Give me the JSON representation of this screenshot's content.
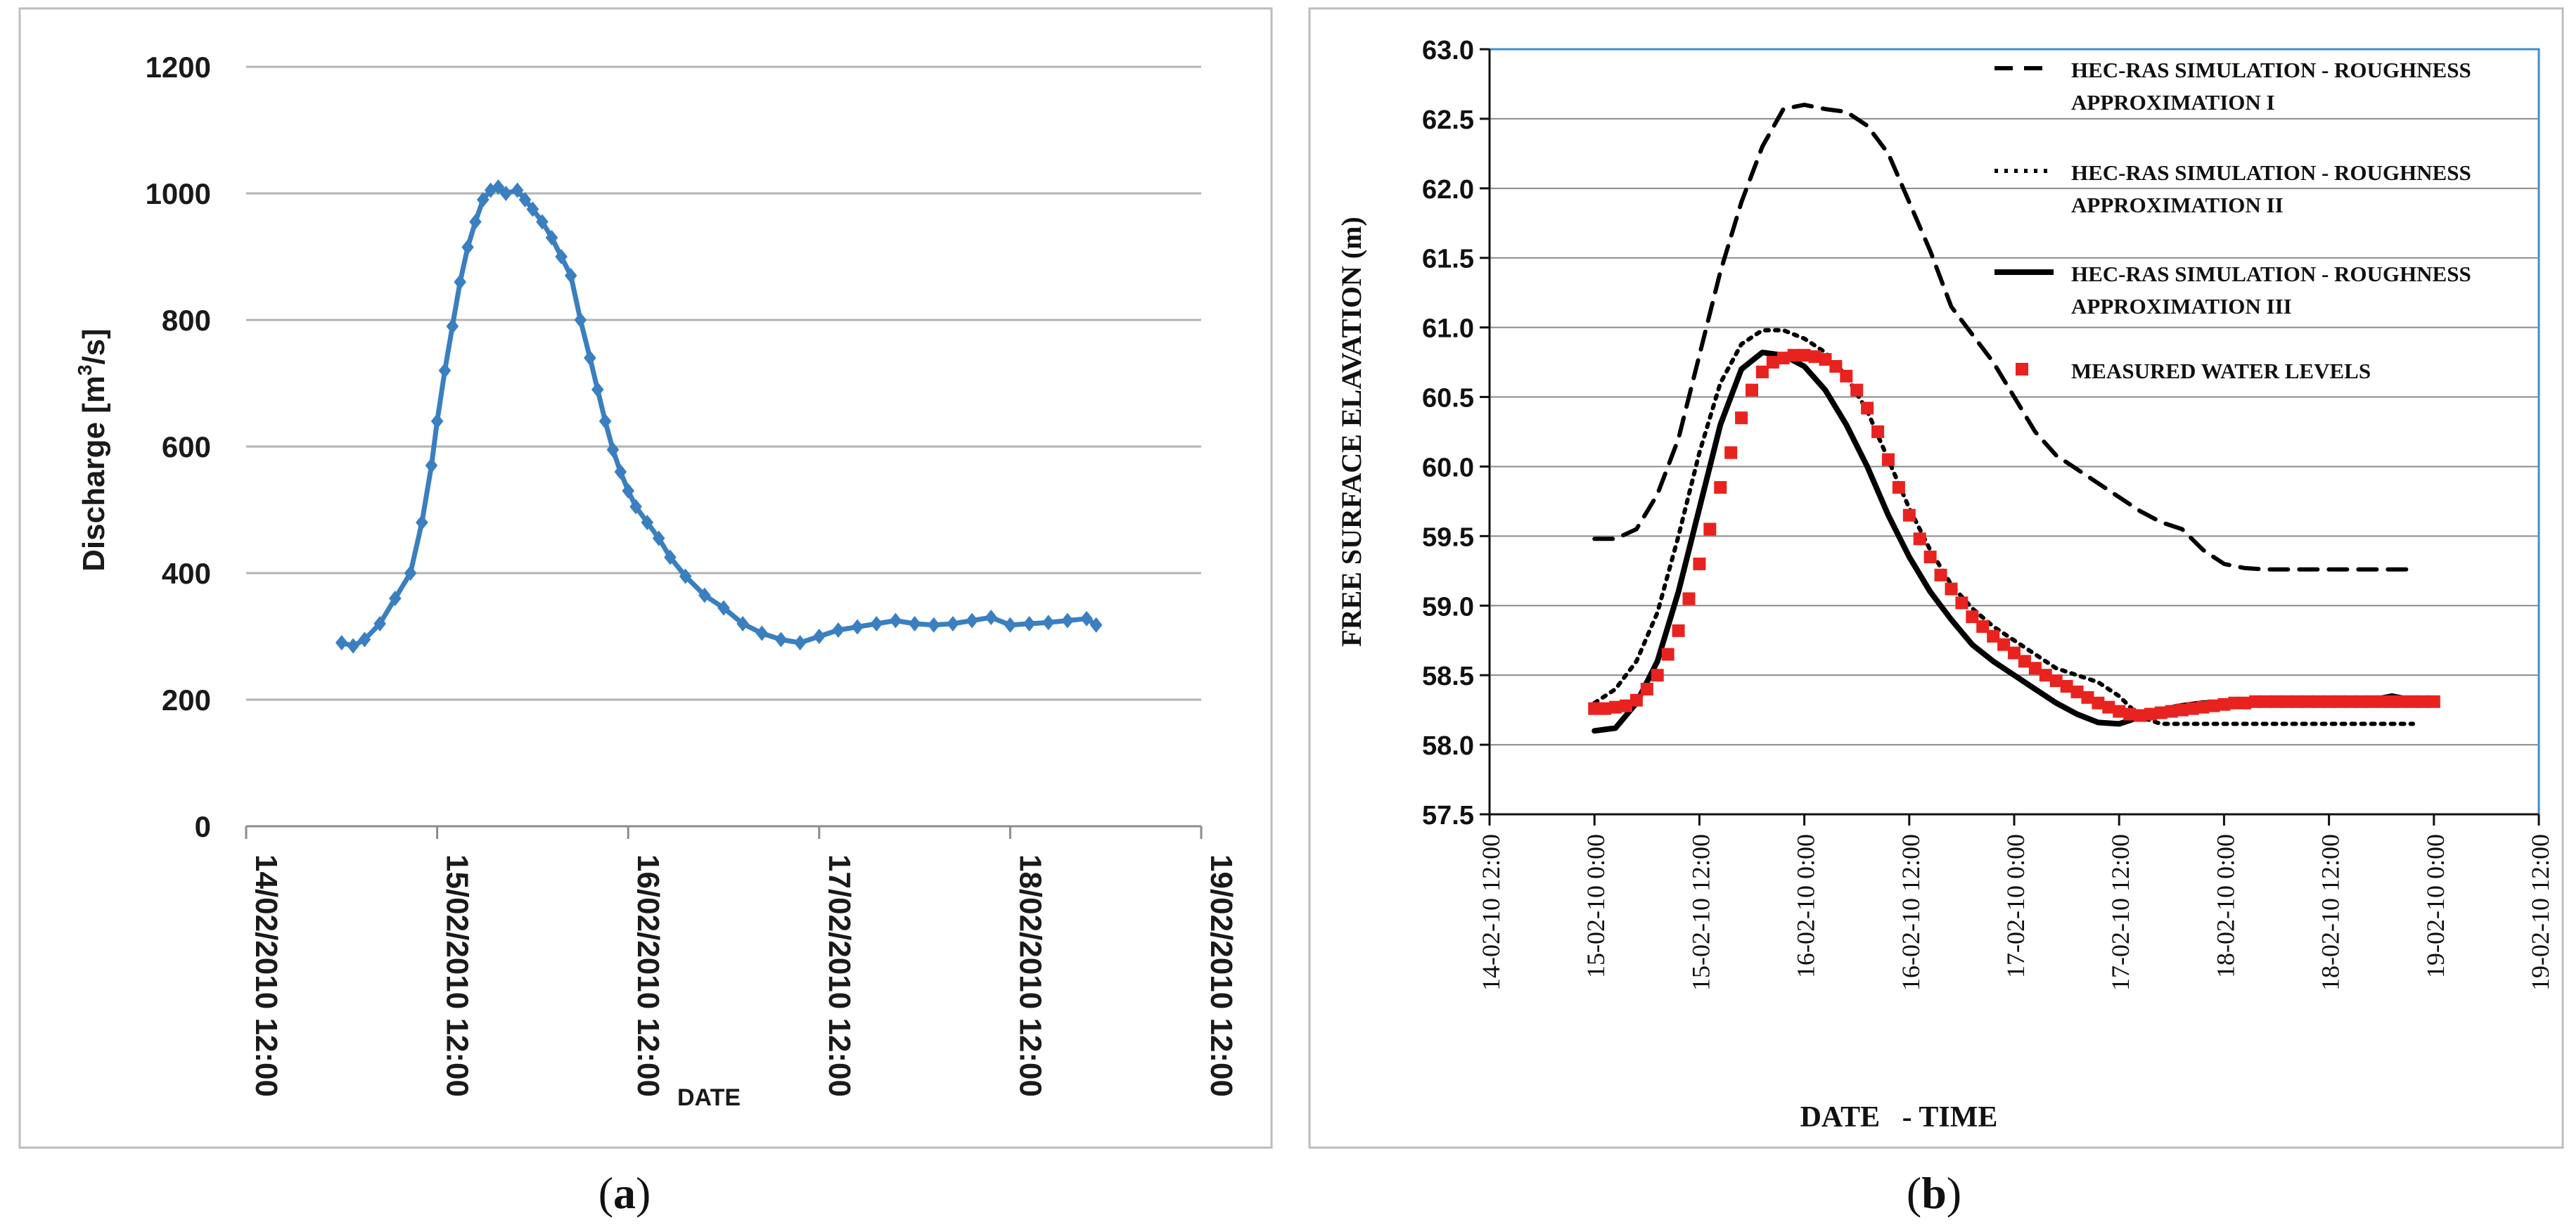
{
  "chart_data": [
    {
      "type": "line",
      "panel_label": "a",
      "title": "",
      "xlabel": "DATE",
      "ylabel": "Discharge [m³/s]",
      "ylabel_parts": {
        "pre": "Discharge [m",
        "sup": "3",
        "post": "/s]"
      },
      "ylim": [
        0,
        1200
      ],
      "yticks": [
        0,
        200,
        400,
        600,
        800,
        1000,
        1200
      ],
      "xlim_days": [
        0,
        5
      ],
      "xtick_labels": [
        "14/02/2010 12:00",
        "15/02/2010 12:00",
        "16/02/2010 12:00",
        "17/02/2010 12:00",
        "18/02/2010 12:00",
        "19/02/2010 12:00"
      ],
      "grid": true,
      "series": [
        {
          "name": "Discharge",
          "color": "#3a7fbf",
          "marker": "diamond",
          "x": [
            0.5,
            0.56,
            0.62,
            0.7,
            0.78,
            0.86,
            0.92,
            0.97,
            1.0,
            1.04,
            1.08,
            1.12,
            1.16,
            1.2,
            1.24,
            1.28,
            1.32,
            1.36,
            1.42,
            1.46,
            1.5,
            1.55,
            1.6,
            1.65,
            1.7,
            1.75,
            1.8,
            1.84,
            1.88,
            1.92,
            1.96,
            2.0,
            2.04,
            2.1,
            2.16,
            2.22,
            2.3,
            2.4,
            2.5,
            2.6,
            2.7,
            2.8,
            2.9,
            3.0,
            3.1,
            3.2,
            3.3,
            3.4,
            3.5,
            3.6,
            3.7,
            3.8,
            3.9,
            4.0,
            4.1,
            4.2,
            4.3,
            4.4,
            4.45
          ],
          "values": [
            290,
            285,
            295,
            320,
            360,
            400,
            480,
            570,
            640,
            720,
            790,
            860,
            915,
            955,
            990,
            1005,
            1010,
            1000,
            1005,
            990,
            975,
            955,
            930,
            900,
            870,
            800,
            740,
            690,
            640,
            595,
            560,
            530,
            505,
            480,
            455,
            425,
            395,
            365,
            345,
            320,
            305,
            295,
            290,
            300,
            310,
            315,
            320,
            325,
            320,
            318,
            320,
            325,
            330,
            318,
            320,
            322,
            325,
            328,
            318
          ]
        }
      ]
    },
    {
      "type": "line",
      "panel_label": "b",
      "title": "",
      "xlabel": "DATE   - TIME",
      "ylabel": "FREE  SURFACE  ELAVATION  (m)",
      "ylim": [
        57.5,
        63.0
      ],
      "yticks": [
        "57.5",
        "58.0",
        "58.5",
        "59.0",
        "59.5",
        "60.0",
        "60.5",
        "61.0",
        "61.5",
        "62.0",
        "62.5",
        "63.0"
      ],
      "xlim_days": [
        0,
        5
      ],
      "xtick_labels": [
        "14-02-10 12:00",
        "15-02-10 0:00",
        "15-02-10 12:00",
        "16-02-10 0:00",
        "16-02-10 12:00",
        "17-02-10 0:00",
        "17-02-10 12:00",
        "18-02-10 0:00",
        "18-02-10 12:00",
        "19-02-10 0:00",
        "19-02-10 12:00"
      ],
      "grid": true,
      "legend_position": "top-right",
      "series": [
        {
          "name": "HEC-RAS SIMULATION - ROUGHNESS APPROXIMATION I",
          "legend_lines": [
            "HEC-RAS SIMULATION - ROUGHNESS",
            "APPROXIMATION I"
          ],
          "style": "dashed",
          "color": "#000000",
          "x": [
            0.5,
            0.6,
            0.7,
            0.8,
            0.9,
            1.0,
            1.1,
            1.2,
            1.3,
            1.4,
            1.5,
            1.6,
            1.7,
            1.8,
            1.9,
            2.0,
            2.1,
            2.2,
            2.3,
            2.4,
            2.5,
            2.6,
            2.7,
            2.8,
            2.9,
            3.0,
            3.1,
            3.2,
            3.3,
            3.4,
            3.5,
            3.6,
            3.7,
            3.8,
            4.0,
            4.2,
            4.4
          ],
          "values": [
            59.48,
            59.48,
            59.55,
            59.8,
            60.2,
            60.8,
            61.4,
            61.9,
            62.3,
            62.57,
            62.6,
            62.57,
            62.55,
            62.45,
            62.25,
            61.9,
            61.55,
            61.15,
            60.95,
            60.75,
            60.5,
            60.25,
            60.08,
            59.98,
            59.88,
            59.78,
            59.68,
            59.6,
            59.55,
            59.4,
            59.3,
            59.27,
            59.26,
            59.26,
            59.26,
            59.26,
            59.26
          ]
        },
        {
          "name": "HEC-RAS SIMULATION - ROUGHNESS APPROXIMATION II",
          "legend_lines": [
            "HEC-RAS SIMULATION - ROUGHNESS",
            "APPROXIMATION II"
          ],
          "style": "dotted",
          "color": "#000000",
          "x": [
            0.5,
            0.6,
            0.7,
            0.8,
            0.9,
            1.0,
            1.1,
            1.2,
            1.3,
            1.4,
            1.5,
            1.6,
            1.7,
            1.8,
            1.9,
            2.0,
            2.1,
            2.2,
            2.3,
            2.4,
            2.5,
            2.6,
            2.7,
            2.8,
            2.9,
            3.0,
            3.1,
            3.2,
            3.3,
            3.4,
            3.5,
            3.6,
            3.7,
            3.8,
            3.9,
            4.0,
            4.2,
            4.4
          ],
          "values": [
            58.3,
            58.4,
            58.6,
            58.95,
            59.5,
            60.1,
            60.6,
            60.88,
            60.98,
            60.98,
            60.92,
            60.82,
            60.65,
            60.4,
            60.05,
            59.7,
            59.4,
            59.15,
            58.98,
            58.85,
            58.75,
            58.65,
            58.55,
            58.5,
            58.45,
            58.35,
            58.2,
            58.15,
            58.15,
            58.15,
            58.15,
            58.15,
            58.15,
            58.15,
            58.15,
            58.15,
            58.15,
            58.15
          ]
        },
        {
          "name": "HEC-RAS SIMULATION - ROUGHNESS APPROXIMATION III",
          "legend_lines": [
            "HEC-RAS SIMULATION - ROUGHNESS",
            "APPROXIMATION III"
          ],
          "style": "solid",
          "color": "#000000",
          "x": [
            0.5,
            0.6,
            0.7,
            0.8,
            0.9,
            1.0,
            1.1,
            1.2,
            1.3,
            1.4,
            1.5,
            1.6,
            1.7,
            1.8,
            1.9,
            2.0,
            2.1,
            2.2,
            2.3,
            2.4,
            2.5,
            2.6,
            2.7,
            2.8,
            2.9,
            3.0,
            3.1,
            3.2,
            3.3,
            3.4,
            3.5,
            3.6,
            3.7,
            3.8,
            3.9,
            4.0,
            4.1,
            4.2,
            4.3,
            4.4
          ],
          "values": [
            58.1,
            58.12,
            58.3,
            58.6,
            59.1,
            59.7,
            60.3,
            60.7,
            60.82,
            60.8,
            60.72,
            60.55,
            60.3,
            60.0,
            59.65,
            59.35,
            59.1,
            58.9,
            58.72,
            58.6,
            58.5,
            58.4,
            58.3,
            58.22,
            58.16,
            58.15,
            58.2,
            58.25,
            58.28,
            58.3,
            58.3,
            58.32,
            58.3,
            58.3,
            58.3,
            58.32,
            58.32,
            58.32,
            58.35,
            58.32
          ]
        },
        {
          "name": "MEASURED WATER LEVELS",
          "legend_lines": [
            "MEASURED WATER LEVELS"
          ],
          "style": "markers",
          "marker": "square",
          "color": "#e8231f",
          "x": [
            0.5,
            0.55,
            0.6,
            0.65,
            0.7,
            0.75,
            0.8,
            0.85,
            0.9,
            0.95,
            1.0,
            1.05,
            1.1,
            1.15,
            1.2,
            1.25,
            1.3,
            1.35,
            1.4,
            1.45,
            1.5,
            1.55,
            1.6,
            1.65,
            1.7,
            1.75,
            1.8,
            1.85,
            1.9,
            1.95,
            2.0,
            2.05,
            2.1,
            2.15,
            2.2,
            2.25,
            2.3,
            2.35,
            2.4,
            2.45,
            2.5,
            2.55,
            2.6,
            2.65,
            2.7,
            2.75,
            2.8,
            2.85,
            2.9,
            2.95,
            3.0,
            3.05,
            3.1,
            3.15,
            3.2,
            3.25,
            3.3,
            3.35,
            3.4,
            3.45,
            3.5,
            3.55,
            3.6,
            3.65,
            3.7,
            3.75,
            3.8,
            3.85,
            3.9,
            3.95,
            4.0,
            4.05,
            4.1,
            4.15,
            4.2,
            4.25,
            4.3,
            4.35,
            4.4,
            4.45,
            4.5
          ],
          "values": [
            58.26,
            58.26,
            58.27,
            58.28,
            58.32,
            58.4,
            58.5,
            58.65,
            58.82,
            59.05,
            59.3,
            59.55,
            59.85,
            60.1,
            60.35,
            60.55,
            60.68,
            60.75,
            60.78,
            60.8,
            60.8,
            60.79,
            60.77,
            60.72,
            60.65,
            60.55,
            60.42,
            60.25,
            60.05,
            59.85,
            59.65,
            59.48,
            59.35,
            59.22,
            59.12,
            59.02,
            58.92,
            58.85,
            58.78,
            58.72,
            58.66,
            58.6,
            58.55,
            58.5,
            58.46,
            58.42,
            58.38,
            58.34,
            58.3,
            58.27,
            58.24,
            58.22,
            58.21,
            58.22,
            58.23,
            58.24,
            58.25,
            58.26,
            58.27,
            58.28,
            58.29,
            58.3,
            58.3,
            58.31,
            58.31,
            58.31,
            58.31,
            58.31,
            58.31,
            58.31,
            58.31,
            58.31,
            58.31,
            58.31,
            58.31,
            58.31,
            58.31,
            58.31,
            58.31,
            58.31,
            58.31
          ]
        }
      ]
    }
  ]
}
